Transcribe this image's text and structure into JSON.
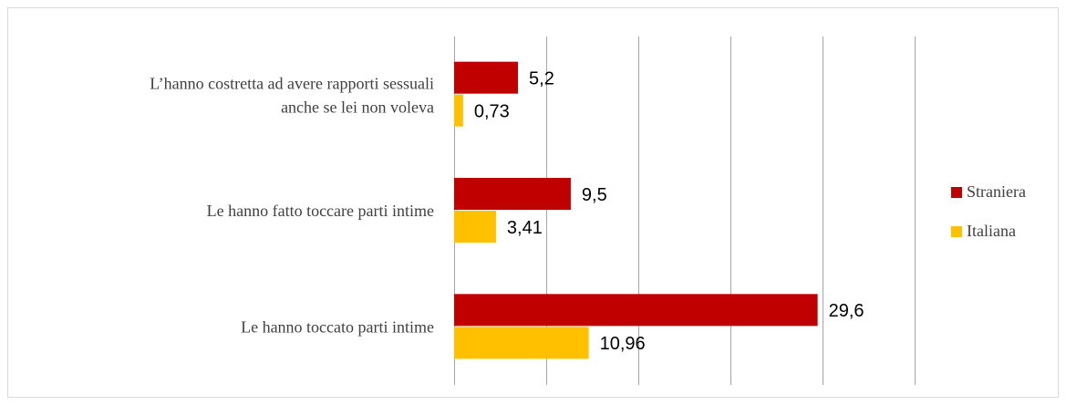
{
  "chart_data": {
    "type": "bar",
    "orientation": "horizontal",
    "categories": [
      "L’hanno costretta ad avere rapporti sessuali\nanche se lei non voleva",
      "Le hanno fatto toccare parti intime",
      "Le hanno toccato parti intime"
    ],
    "series": [
      {
        "name": "Straniera",
        "color": "#c00000",
        "values": [
          5.2,
          9.5,
          29.6
        ],
        "value_labels": [
          "5,2",
          "9,5",
          "29,6"
        ]
      },
      {
        "name": "Italiana",
        "color": "#ffc000",
        "values": [
          0.73,
          3.41,
          10.96
        ],
        "value_labels": [
          "0,73",
          "3,41",
          "10,96"
        ]
      }
    ],
    "xlim": [
      0,
      37.5
    ],
    "xticks": [
      0,
      7.5,
      15,
      22.5,
      30,
      37.5
    ],
    "grid": true,
    "legend": "right"
  }
}
